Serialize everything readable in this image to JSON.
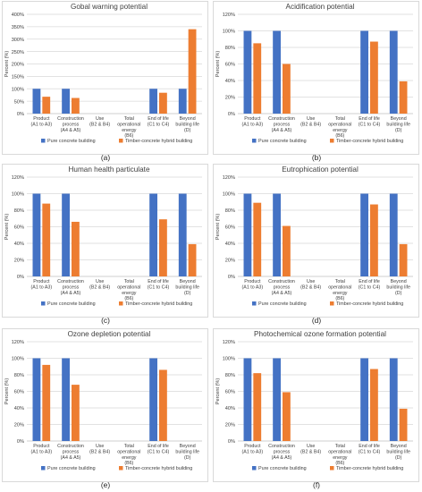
{
  "colors": {
    "pure": "#4472c4",
    "hybrid": "#ed7d31",
    "grid": "#d9d9d9",
    "axis": "#bfbfbf",
    "text": "#404040"
  },
  "chart_data": [
    {
      "type": "bar",
      "title": "Gobal warning potential",
      "panel_label": "(a)",
      "ylabel": "Percent (%)",
      "ylim": [
        0,
        400
      ],
      "yticks": [
        "0%",
        "50%",
        "100%",
        "150%",
        "200%",
        "250%",
        "300%",
        "350%",
        "400%"
      ],
      "categories": [
        [
          "Product",
          "(A1 to A3)"
        ],
        [
          "Construction",
          "process",
          "(A4 & A5)"
        ],
        [
          "Use",
          "(B2 & B4)"
        ],
        [
          "Total",
          "operational",
          "energy",
          "(B6)"
        ],
        [
          "End of life",
          "(C1 to C4)"
        ],
        [
          "Beyond",
          "building life",
          "(D)"
        ]
      ],
      "series": [
        {
          "name": "Pure concrete building",
          "values": [
            100,
            100,
            null,
            null,
            100,
            100
          ]
        },
        {
          "name": "Timber-concrete hybrid building",
          "values": [
            68,
            63,
            null,
            null,
            84,
            340
          ]
        }
      ]
    },
    {
      "type": "bar",
      "title": "Acidification potential",
      "panel_label": "(b)",
      "ylabel": "Percent (%)",
      "ylim": [
        0,
        120
      ],
      "yticks": [
        "0%",
        "20%",
        "40%",
        "60%",
        "80%",
        "100%",
        "120%"
      ],
      "categories": [
        [
          "Product",
          "(A1 to A3)"
        ],
        [
          "Construction",
          "process",
          "(A4 & A5)"
        ],
        [
          "Use",
          "(B2 & B4)"
        ],
        [
          "Total",
          "operational",
          "energy",
          "(B6)"
        ],
        [
          "End of life",
          "(C1 to C4)"
        ],
        [
          "Beyond",
          "building life",
          "(D)"
        ]
      ],
      "series": [
        {
          "name": "Pure concrete building",
          "values": [
            100,
            100,
            null,
            null,
            100,
            100
          ]
        },
        {
          "name": "Timber-concrete hybrid building",
          "values": [
            85,
            60,
            null,
            null,
            87,
            39
          ]
        }
      ]
    },
    {
      "type": "bar",
      "title": "Human health particulate",
      "panel_label": "(c)",
      "ylabel": "Percent (%)",
      "ylim": [
        0,
        120
      ],
      "yticks": [
        "0%",
        "20%",
        "40%",
        "60%",
        "80%",
        "100%",
        "120%"
      ],
      "categories": [
        [
          "Product",
          "(A1 to A3)"
        ],
        [
          "Construction",
          "process",
          "(A4 & A5)"
        ],
        [
          "Use",
          "(B2 & B4)"
        ],
        [
          "Total",
          "operational",
          "energy",
          "(B6)"
        ],
        [
          "End of life",
          "(C1 to C4)"
        ],
        [
          "Beyond",
          "building life",
          "(D)"
        ]
      ],
      "series": [
        {
          "name": "Pure concrete building",
          "values": [
            100,
            100,
            null,
            null,
            100,
            100
          ]
        },
        {
          "name": "Timber-concrete hybrid building",
          "values": [
            88,
            66,
            null,
            null,
            69,
            39
          ]
        }
      ]
    },
    {
      "type": "bar",
      "title": "Eutrophication potential",
      "panel_label": "(d)",
      "ylabel": "Percent (%)",
      "ylim": [
        0,
        120
      ],
      "yticks": [
        "0%",
        "20%",
        "40%",
        "60%",
        "80%",
        "100%",
        "120%"
      ],
      "categories": [
        [
          "Product",
          "(A1 to A3)"
        ],
        [
          "Construction",
          "process",
          "(A4 & A5)"
        ],
        [
          "Use",
          "(B2 & B4)"
        ],
        [
          "Total",
          "operational",
          "energy",
          "(B6)"
        ],
        [
          "End of life",
          "(C1 to C4)"
        ],
        [
          "Beyond",
          "building life",
          "(D)"
        ]
      ],
      "series": [
        {
          "name": "Pure concrete building",
          "values": [
            100,
            100,
            null,
            null,
            100,
            100
          ]
        },
        {
          "name": "Timber-concrete hybrid building",
          "values": [
            89,
            61,
            null,
            null,
            87,
            39
          ]
        }
      ]
    },
    {
      "type": "bar",
      "title": "Ozone depletion potential",
      "panel_label": "(e)",
      "ylabel": "Percent (%)",
      "ylim": [
        0,
        120
      ],
      "yticks": [
        "0%",
        "20%",
        "40%",
        "60%",
        "80%",
        "100%",
        "120%"
      ],
      "categories": [
        [
          "Product",
          "(A1 to A3)"
        ],
        [
          "Construction",
          "process",
          "(A4 & A5)"
        ],
        [
          "Use",
          "(B2 & B4)"
        ],
        [
          "Total",
          "operational",
          "energy",
          "(B6)"
        ],
        [
          "End of life",
          "(C1 to C4)"
        ],
        [
          "Beyond",
          "building life",
          "(D)"
        ]
      ],
      "series": [
        {
          "name": "Pure concrete building",
          "values": [
            100,
            100,
            null,
            null,
            100,
            null
          ]
        },
        {
          "name": "Timber-concrete hybrid building",
          "values": [
            92,
            68,
            null,
            null,
            86,
            null
          ]
        }
      ]
    },
    {
      "type": "bar",
      "title": "Photochemical ozone formation potential",
      "panel_label": "(f)",
      "ylabel": "Percent (%)",
      "ylim": [
        0,
        120
      ],
      "yticks": [
        "0%",
        "20%",
        "40%",
        "60%",
        "80%",
        "100%",
        "120%"
      ],
      "categories": [
        [
          "Product",
          "(A1 to A3)"
        ],
        [
          "Construction",
          "process",
          "(A4 & A5)"
        ],
        [
          "Use",
          "(B2 & B4)"
        ],
        [
          "Total",
          "operational",
          "energy",
          "(B6)"
        ],
        [
          "End of life",
          "(C1 to C4)"
        ],
        [
          "Beyond",
          "building life",
          "(D)"
        ]
      ],
      "series": [
        {
          "name": "Pure concrete building",
          "values": [
            100,
            100,
            null,
            null,
            100,
            100
          ]
        },
        {
          "name": "Timber-concrete hybrid building",
          "values": [
            82,
            59,
            null,
            null,
            87,
            39
          ]
        }
      ]
    }
  ]
}
